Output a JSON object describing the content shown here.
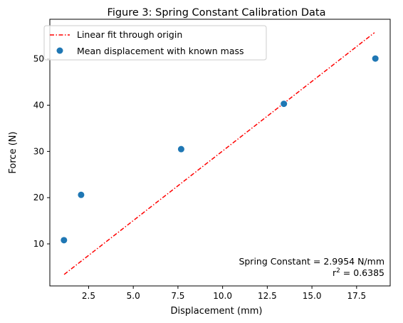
{
  "chart_data": {
    "type": "scatter",
    "title": "Figure 3: Spring Constant Calibration Data",
    "xlabel": "Displacement (mm)",
    "ylabel": "Force (N)",
    "xlim": [
      0.33,
      19.38
    ],
    "ylim": [
      0.9,
      58.6
    ],
    "xticks": [
      2.5,
      5.0,
      7.5,
      10.0,
      12.5,
      15.0,
      17.5
    ],
    "xtick_labels": [
      "2.5",
      "5.0",
      "7.5",
      "10.0",
      "12.5",
      "15.0",
      "17.5"
    ],
    "yticks": [
      10,
      20,
      30,
      40,
      50
    ],
    "ytick_labels": [
      "10",
      "20",
      "30",
      "40",
      "50"
    ],
    "grid": false,
    "legend": "upper-left",
    "series": [
      {
        "name": "Linear fit through origin",
        "kind": "line",
        "style": "dash-dot",
        "color": "#ff0000",
        "x": [
          1.13,
          18.5
        ],
        "y": [
          3.38,
          55.7
        ]
      },
      {
        "name": "Mean displacement with known mass",
        "kind": "scatter",
        "color": "#1f77b4",
        "x": [
          1.12,
          2.08,
          7.68,
          13.43,
          18.55
        ],
        "y": [
          10.8,
          20.6,
          30.5,
          40.3,
          50.1
        ]
      }
    ],
    "annotations": {
      "spring_constant": "Spring Constant = 2.9954 N/mm",
      "r2_prefix": "r",
      "r2_exp": "2",
      "r2_suffix": " = 0.6385"
    }
  }
}
